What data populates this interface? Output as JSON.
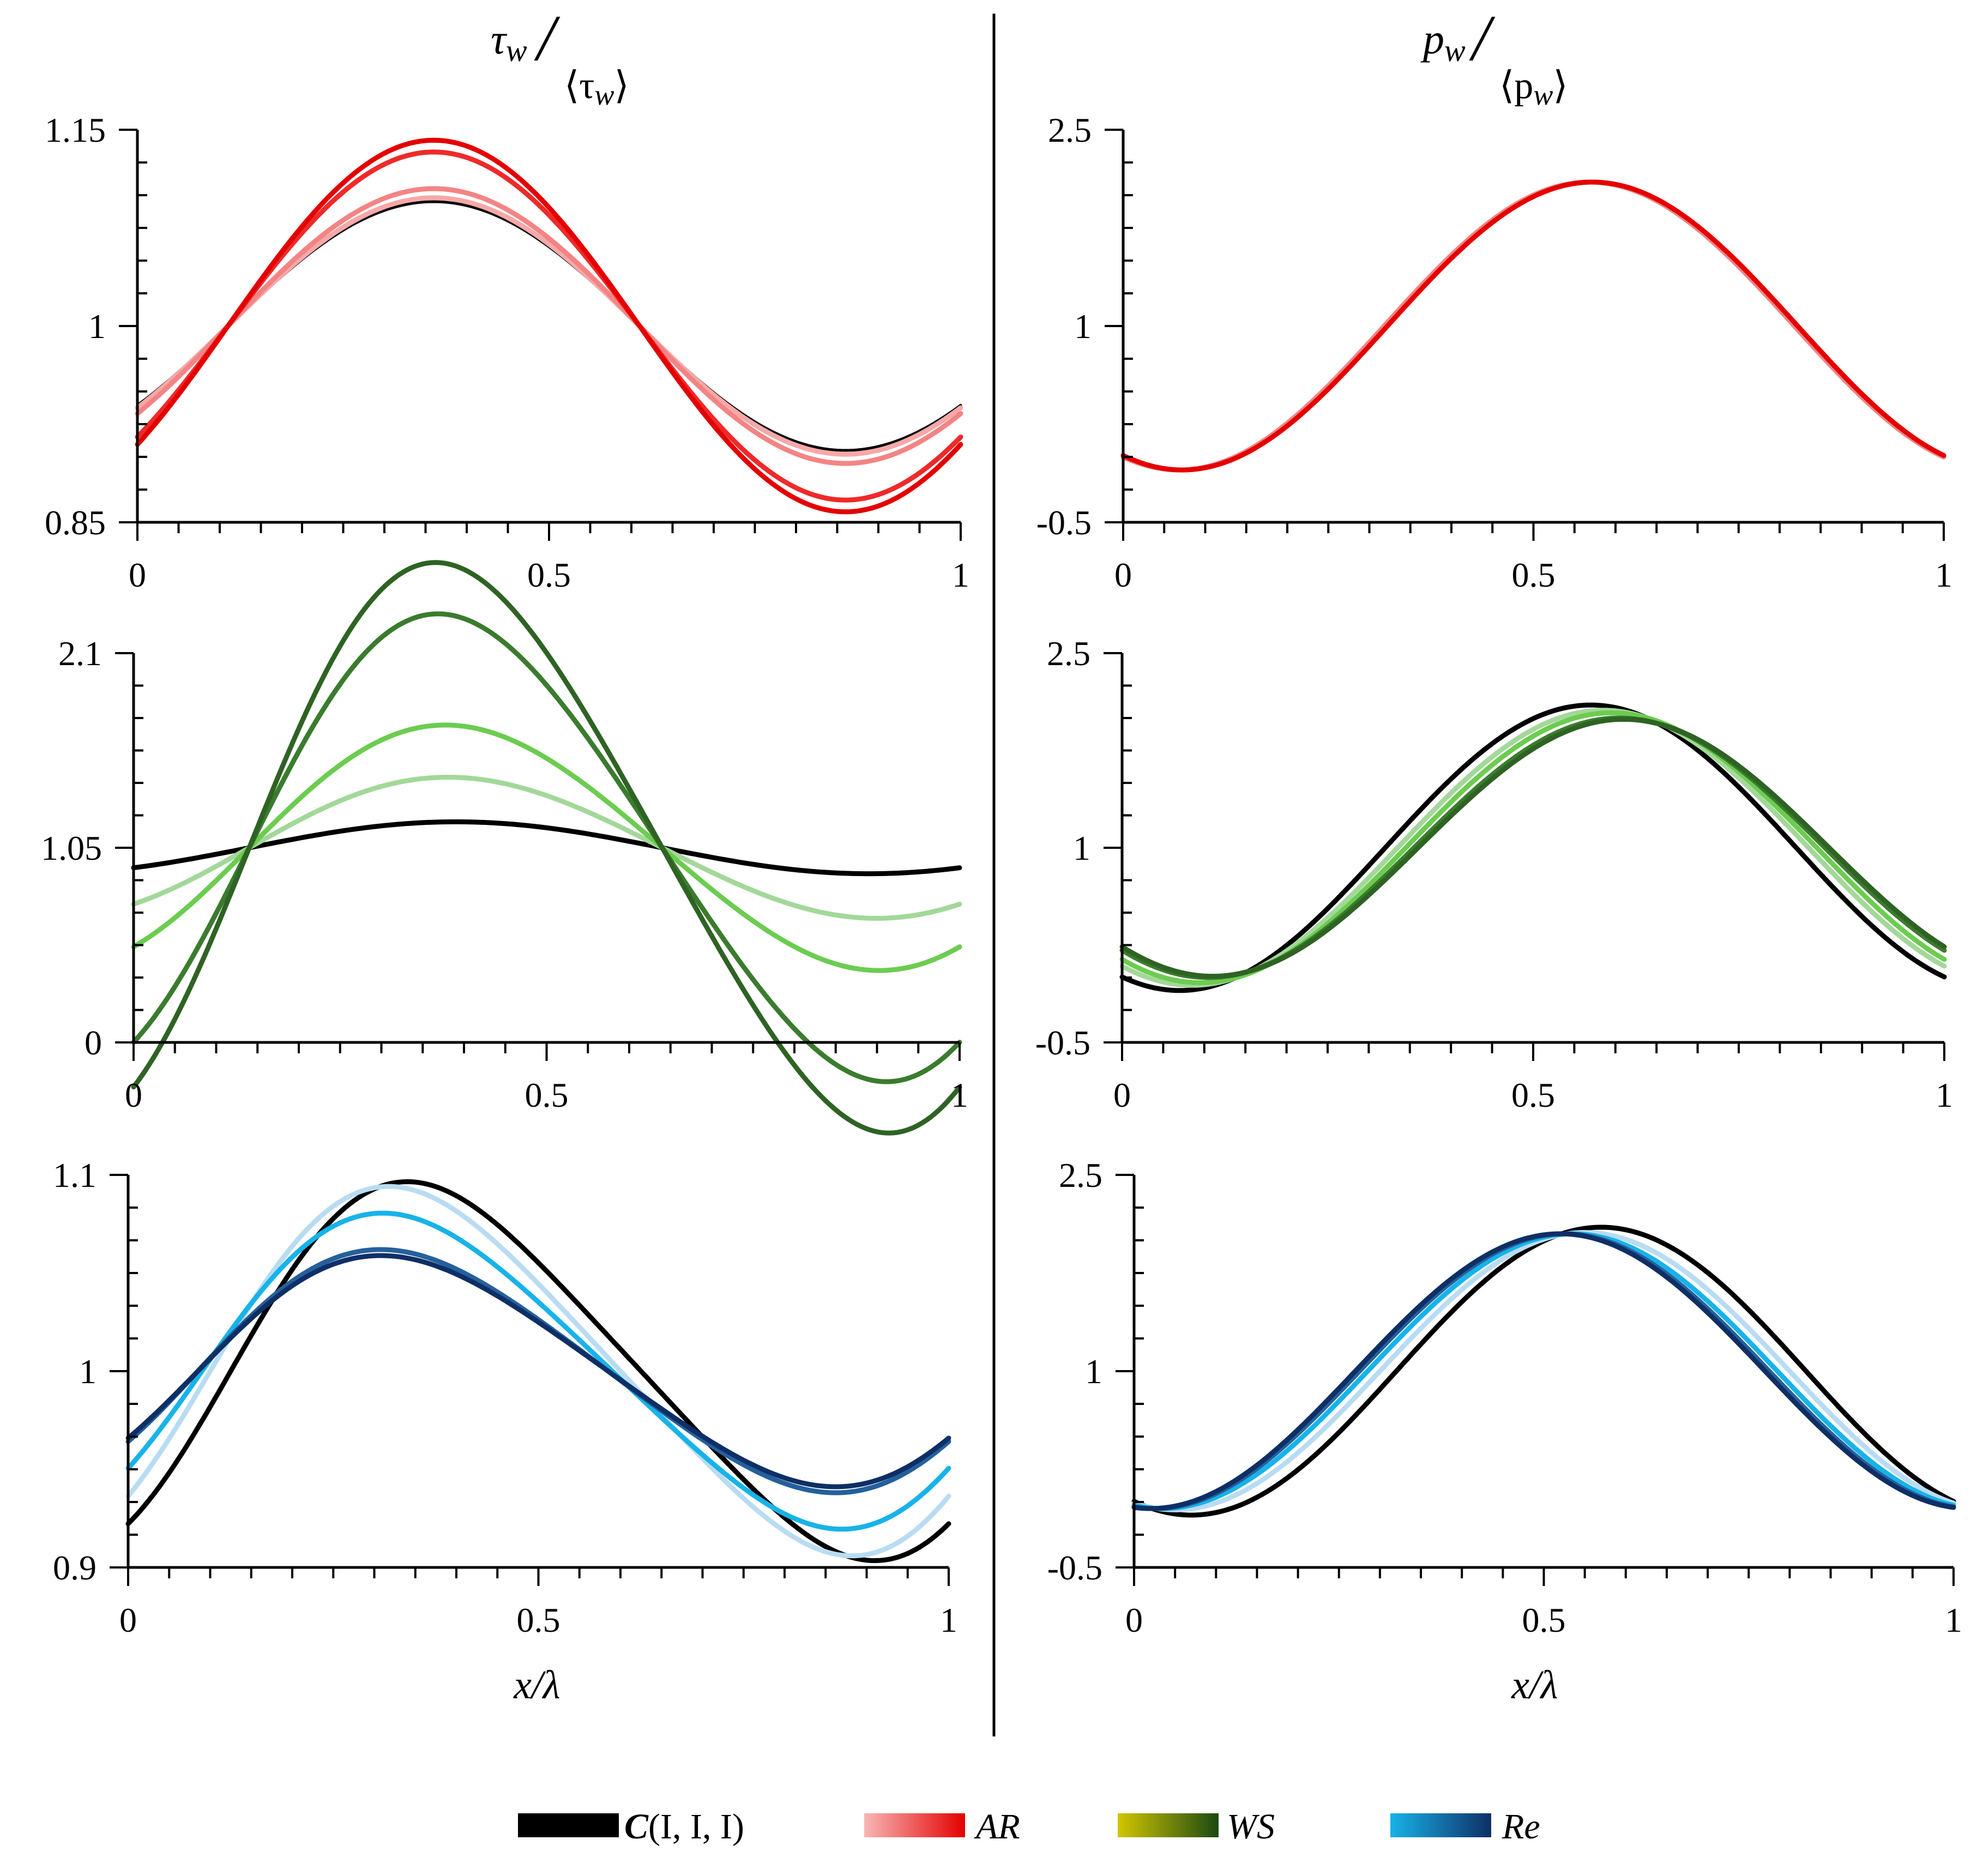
{
  "chart_data": [
    {
      "type": "line",
      "panel": "top-left",
      "quantity": "tau_w",
      "xlim": [
        0,
        1
      ],
      "ylim": [
        0.85,
        1.15
      ],
      "xticks": [
        "0",
        "0.5",
        "1"
      ],
      "yticks": [
        "0.85",
        "1",
        "1.15"
      ],
      "series": [
        {
          "name": "C(I, I, I)",
          "color": "#000000",
          "mean": 1.0,
          "amp": 0.095,
          "phase": 0.11,
          "skew": 0
        },
        {
          "name": "AR (1)",
          "color": "#F7A8A8",
          "mean": 1.0,
          "amp": 0.098,
          "phase": 0.11,
          "skew": 0
        },
        {
          "name": "AR (2)",
          "color": "#F48484",
          "mean": 1.0,
          "amp": 0.105,
          "phase": 0.11,
          "skew": 0
        },
        {
          "name": "AR (3)",
          "color": "#EE2A2A",
          "mean": 1.0,
          "amp": 0.133,
          "phase": 0.11,
          "skew": 0
        },
        {
          "name": "AR (4)",
          "color": "#E40000",
          "mean": 1.0,
          "amp": 0.142,
          "phase": 0.11,
          "skew": 0
        }
      ]
    },
    {
      "type": "line",
      "panel": "top-right",
      "quantity": "p_w",
      "xlim": [
        0,
        1
      ],
      "ylim": [
        -0.5,
        2.5
      ],
      "xticks": [
        "0",
        "0.5",
        "1"
      ],
      "yticks": [
        "-0.5",
        "1",
        "2.5"
      ],
      "series": [
        {
          "name": "AR (1)",
          "color": "#F48484",
          "mean": 1.0,
          "amp": 1.1,
          "phase": 0.318,
          "skew": 0
        },
        {
          "name": "AR (2)",
          "color": "#E40000",
          "mean": 1.0,
          "amp": 1.1,
          "phase": 0.322,
          "skew": 0
        }
      ]
    },
    {
      "type": "line",
      "panel": "middle-left",
      "quantity": "tau_w",
      "xlim": [
        0,
        1
      ],
      "ylim": [
        0,
        2.1
      ],
      "xticks": [
        "0",
        "0.5",
        "1"
      ],
      "yticks": [
        "0",
        "1.05",
        "2.1"
      ],
      "series": [
        {
          "name": "C(I, I, I)",
          "color": "#000000",
          "mean": 1.05,
          "amp": 0.14,
          "phase": 0.14,
          "skew": 0
        },
        {
          "name": "WS (1)",
          "color": "#A3D89A",
          "mean": 1.05,
          "amp": 0.38,
          "phase": 0.14,
          "skew": 0.03
        },
        {
          "name": "WS (2)",
          "color": "#6CCC50",
          "mean": 1.05,
          "amp": 0.66,
          "phase": 0.14,
          "skew": 0.04
        },
        {
          "name": "WS (3)",
          "color": "#3A7C2D",
          "mean": 1.05,
          "amp": 1.25,
          "phase": 0.14,
          "skew": 0.07
        },
        {
          "name": "WS (4)",
          "color": "#2E6324",
          "mean": 1.05,
          "amp": 1.52,
          "phase": 0.14,
          "skew": 0.08
        }
      ]
    },
    {
      "type": "line",
      "panel": "middle-right",
      "quantity": "p_w",
      "xlim": [
        0,
        1
      ],
      "ylim": [
        -0.5,
        2.5
      ],
      "xticks": [
        "0",
        "0.5",
        "1"
      ],
      "yticks": [
        "-0.5",
        "1",
        "2.5"
      ],
      "series": [
        {
          "name": "C(I, I, I)",
          "color": "#000000",
          "mean": 1.0,
          "amp": 1.1,
          "phase": 0.32,
          "skew": 0
        },
        {
          "name": "WS (1)",
          "color": "#A3D89A",
          "mean": 1.0,
          "amp": 1.06,
          "phase": 0.335,
          "skew": 0
        },
        {
          "name": "WS (2)",
          "color": "#6CCC50",
          "mean": 1.0,
          "amp": 1.04,
          "phase": 0.345,
          "skew": 0
        },
        {
          "name": "WS (3)",
          "color": "#3A7C2D",
          "mean": 1.0,
          "amp": 1.0,
          "phase": 0.355,
          "skew": 0
        },
        {
          "name": "WS (4)",
          "color": "#2E6324",
          "mean": 1.0,
          "amp": 0.99,
          "phase": 0.36,
          "skew": 0
        }
      ]
    },
    {
      "type": "line",
      "panel": "bottom-left",
      "quantity": "tau_w",
      "xlim": [
        0,
        1
      ],
      "ylim": [
        0.9,
        1.1
      ],
      "xticks": [
        "0",
        "0.5",
        "1"
      ],
      "yticks": [
        "0.9",
        "1",
        "1.1"
      ],
      "series": [
        {
          "name": "C(I, I, I)",
          "color": "#000000",
          "mean": 1.0,
          "amp": 0.094,
          "phase": 0.125,
          "skew": 0.12
        },
        {
          "name": "Re (1)",
          "color": "#B9DCF3",
          "mean": 1.0,
          "amp": 0.092,
          "phase": 0.1,
          "skew": 0.11
        },
        {
          "name": "Re (2)",
          "color": "#17B3E8",
          "mean": 1.0,
          "amp": 0.079,
          "phase": 0.09,
          "skew": 0.1
        },
        {
          "name": "Re (3)",
          "color": "#24609C",
          "mean": 1.0,
          "amp": 0.061,
          "phase": 0.085,
          "skew": 0.09
        },
        {
          "name": "Re (4)",
          "color": "#0E2F66",
          "mean": 1.0,
          "amp": 0.058,
          "phase": 0.085,
          "skew": 0.09
        }
      ]
    },
    {
      "type": "line",
      "panel": "bottom-right",
      "quantity": "p_w",
      "xlim": [
        0,
        1
      ],
      "ylim": [
        -0.5,
        2.5
      ],
      "xticks": [
        "0",
        "0.5",
        "1"
      ],
      "yticks": [
        "-0.5",
        "1",
        "2.5"
      ],
      "series": [
        {
          "name": "C(I, I, I)",
          "color": "#000000",
          "mean": 1.0,
          "amp": 1.1,
          "phase": 0.32,
          "skew": 0
        },
        {
          "name": "Re (1)",
          "color": "#B9DCF3",
          "mean": 1.0,
          "amp": 1.06,
          "phase": 0.3,
          "skew": 0
        },
        {
          "name": "Re (2)",
          "color": "#17B3E8",
          "mean": 1.0,
          "amp": 1.05,
          "phase": 0.285,
          "skew": 0
        },
        {
          "name": "Re (3)",
          "color": "#24609C",
          "mean": 1.0,
          "amp": 1.05,
          "phase": 0.275,
          "skew": 0
        },
        {
          "name": "Re (4)",
          "color": "#0E2F66",
          "mean": 1.0,
          "amp": 1.05,
          "phase": 0.27,
          "skew": 0
        }
      ]
    }
  ],
  "column_titles": {
    "left": {
      "numerator": "τ",
      "numerator_sub": "w",
      "denominator": "⟨τ",
      "denominator_sub": "w",
      "denominator_close": "⟩"
    },
    "right": {
      "numerator": "p",
      "numerator_sub": "w",
      "denominator": "⟨p",
      "denominator_sub": "w",
      "denominator_close": "⟩"
    }
  },
  "x_axis_title": "x/λ",
  "legend": [
    {
      "label_bold": "C",
      "label_rest": "(I, I, I)",
      "colors": [
        "#000000",
        "#000000"
      ]
    },
    {
      "label_bold": "",
      "label_rest": "AR",
      "colors": [
        "#F8B6B6",
        "#E40000"
      ]
    },
    {
      "label_bold": "",
      "label_rest": "WS",
      "colors": [
        "#D2C600",
        "#1B4A12"
      ]
    },
    {
      "label_bold": "",
      "label_rest": "Re",
      "colors": [
        "#17B3E8",
        "#0E2F66"
      ]
    }
  ]
}
